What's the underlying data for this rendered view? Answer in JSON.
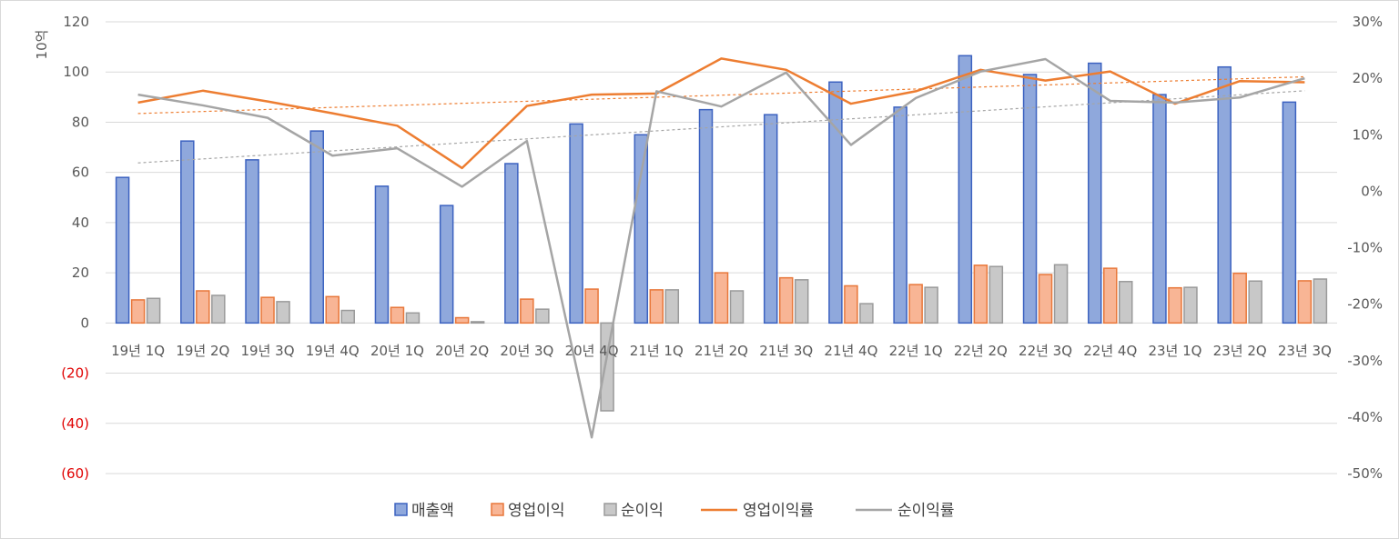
{
  "chart_data": {
    "type": "bar",
    "title": "",
    "y_axis_label": "10억",
    "categories": [
      "19년 1Q",
      "19년 2Q",
      "19년 3Q",
      "19년 4Q",
      "20년 1Q",
      "20년 2Q",
      "20년 3Q",
      "20년 4Q",
      "21년 1Q",
      "21년 2Q",
      "21년 3Q",
      "21년 4Q",
      "22년 1Q",
      "22년 2Q",
      "22년 3Q",
      "22년 4Q",
      "23년 1Q",
      "23년 2Q",
      "23년 3Q"
    ],
    "ylim_left": [
      -60,
      120
    ],
    "y_ticks_left": [
      -60,
      -40,
      -20,
      0,
      20,
      40,
      60,
      80,
      100,
      120
    ],
    "y_tick_labels_left": [
      "(60)",
      "(40)",
      "(20)",
      "0",
      "20",
      "40",
      "60",
      "80",
      "100",
      "120"
    ],
    "ylim_right": [
      -50,
      30
    ],
    "y_ticks_right": [
      -50,
      -40,
      -30,
      -20,
      -10,
      0,
      10,
      20,
      30
    ],
    "y_tick_labels_right": [
      "-50%",
      "-40%",
      "-30%",
      "-20%",
      "-10%",
      "0%",
      "10%",
      "20%",
      "30%"
    ],
    "grid": true,
    "legend_position": "bottom",
    "bar_series": [
      {
        "name": "매출액",
        "color_fill": "#8fa8dc",
        "color_stroke": "#3c62c0",
        "values": [
          58,
          72.5,
          65,
          76.5,
          54.5,
          46.8,
          63.5,
          79.3,
          75,
          85,
          83,
          96,
          86,
          106.5,
          99,
          103.5,
          91,
          102,
          88
        ]
      },
      {
        "name": "영업이익",
        "color_fill": "#f8b595",
        "color_stroke": "#e8773a",
        "values": [
          9.2,
          12.8,
          10.2,
          10.5,
          6.2,
          2.1,
          9.5,
          13.5,
          13.2,
          20,
          18,
          14.8,
          15.3,
          23,
          19.3,
          21.8,
          14,
          19.8,
          16.8
        ]
      },
      {
        "name": "순이익",
        "color_fill": "#c8c8c8",
        "color_stroke": "#9a9a9a",
        "values": [
          9.8,
          11,
          8.5,
          5,
          4,
          0.5,
          5.5,
          -35,
          13.2,
          12.8,
          17.2,
          7.7,
          14.2,
          22.5,
          23.2,
          16.5,
          14.2,
          16.7,
          17.5
        ]
      }
    ],
    "line_series": [
      {
        "name": "영업이익률",
        "axis": "right",
        "color": "#ed7d31",
        "values": [
          15.7,
          17.8,
          15.9,
          13.8,
          11.6,
          4.1,
          15.1,
          17.1,
          17.3,
          23.5,
          21.5,
          15.5,
          17.7,
          21.5,
          19.6,
          21.2,
          15.5,
          19.5,
          19.3
        ]
      },
      {
        "name": "순이익률",
        "axis": "right",
        "color": "#a5a5a5",
        "values": [
          17.1,
          15.2,
          13.0,
          6.3,
          7.6,
          0.8,
          8.9,
          -43.6,
          17.7,
          15.0,
          21.0,
          8.2,
          16.5,
          21.2,
          23.4,
          16.0,
          15.7,
          16.6,
          20.0
        ]
      }
    ],
    "trendlines": [
      {
        "of": "영업이익률",
        "style": "dotted",
        "color": "#ed7d31"
      },
      {
        "of": "순이익률",
        "style": "dotted",
        "color": "#a5a5a5"
      }
    ]
  }
}
